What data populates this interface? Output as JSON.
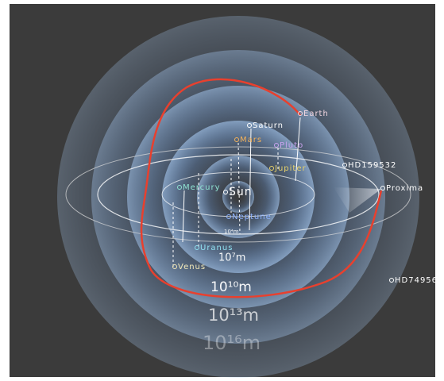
{
  "objects": [
    {
      "label": "Earth",
      "color": "#f2d6e0"
    },
    {
      "label": "Saturn",
      "color": "#ffffff"
    },
    {
      "label": "Mars",
      "color": "#f4b25a"
    },
    {
      "label": "Pluto",
      "color": "#c9a3ef"
    },
    {
      "label": "Jupiter",
      "color": "#e9d36a"
    },
    {
      "label": "HD159532",
      "color": "#ffffff"
    },
    {
      "label": "Proxima",
      "color": "#ffffff"
    },
    {
      "label": "Mercury",
      "color": "#8fe3d2"
    },
    {
      "label": "Sun",
      "color": "#ffffff"
    },
    {
      "label": "Neptune",
      "color": "#8fb4ff"
    },
    {
      "label": "Uranus",
      "color": "#8fe0f0"
    },
    {
      "label": "Venus",
      "color": "#f3e9b8"
    },
    {
      "label": "HD74956",
      "color": "#ffffff"
    }
  ],
  "scales": [
    {
      "label": "10⁴m",
      "size": 7,
      "opacity": 0.9
    },
    {
      "label": "10⁷m",
      "size": 13,
      "opacity": 0.95
    },
    {
      "label": "10¹⁰m",
      "size": 17,
      "opacity": 0.95
    },
    {
      "label": "10¹³m",
      "size": 21,
      "opacity": 0.7
    },
    {
      "label": "10¹⁶m",
      "size": 24,
      "opacity": 0.35
    }
  ]
}
